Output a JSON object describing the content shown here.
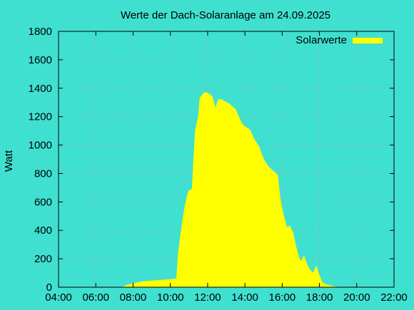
{
  "chart_data": {
    "type": "area",
    "title": "Werte der Dach-Solaranlage am 24.09.2025",
    "xlabel": "",
    "ylabel": "Watt",
    "xlim": [
      "04:00",
      "22:00"
    ],
    "ylim": [
      0,
      1800
    ],
    "x_ticks": [
      "04:00",
      "06:00",
      "08:00",
      "10:00",
      "12:00",
      "14:00",
      "16:00",
      "18:00",
      "20:00",
      "22:00"
    ],
    "y_ticks": [
      0,
      200,
      400,
      600,
      800,
      1000,
      1200,
      1400,
      1600,
      1800
    ],
    "grid": true,
    "legend_position": "top-right",
    "colors": {
      "background": "#40e0d0",
      "series": "#ffff00"
    },
    "series": [
      {
        "name": "Solarwerte",
        "x": [
          "07:25",
          "07:40",
          "08:00",
          "08:30",
          "09:00",
          "09:30",
          "10:00",
          "10:20",
          "10:25",
          "10:35",
          "10:45",
          "10:55",
          "11:00",
          "11:10",
          "11:15",
          "11:20",
          "11:30",
          "11:35",
          "11:45",
          "11:50",
          "11:55",
          "12:05",
          "12:15",
          "12:25",
          "12:35",
          "12:45",
          "13:00",
          "13:10",
          "13:20",
          "13:30",
          "13:40",
          "13:50",
          "14:00",
          "14:15",
          "14:20",
          "14:30",
          "14:45",
          "15:00",
          "15:15",
          "15:30",
          "15:45",
          "15:55",
          "16:05",
          "16:15",
          "16:25",
          "16:35",
          "16:45",
          "16:55",
          "17:00",
          "17:10",
          "17:20",
          "17:30",
          "17:40",
          "17:50",
          "17:55",
          "18:00",
          "18:10",
          "18:20",
          "18:40",
          "18:55",
          "19:00"
        ],
        "values": [
          0,
          15,
          25,
          40,
          45,
          50,
          55,
          60,
          230,
          400,
          550,
          650,
          680,
          690,
          900,
          1100,
          1200,
          1330,
          1360,
          1370,
          1370,
          1360,
          1340,
          1260,
          1320,
          1320,
          1300,
          1290,
          1270,
          1250,
          1200,
          1150,
          1130,
          1110,
          1090,
          1040,
          990,
          900,
          850,
          820,
          790,
          600,
          500,
          420,
          430,
          380,
          280,
          200,
          180,
          220,
          160,
          120,
          100,
          150,
          110,
          80,
          30,
          20,
          8,
          2,
          0
        ]
      }
    ]
  }
}
